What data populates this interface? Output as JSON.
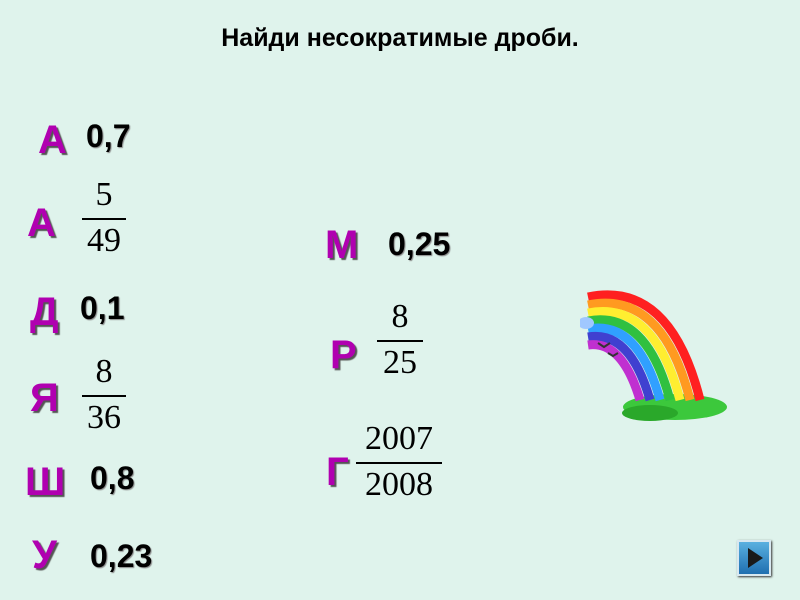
{
  "title": "Найди несократимые дроби.",
  "items": {
    "a1": {
      "letter": "А",
      "value": "0,7"
    },
    "a2": {
      "letter": "А",
      "numerator": "5",
      "denominator": "49"
    },
    "d": {
      "letter": "Д",
      "value": "0,1"
    },
    "ya": {
      "letter": "Я",
      "numerator": "8",
      "denominator": "36"
    },
    "sh": {
      "letter": "Ш",
      "value": "0,8"
    },
    "u": {
      "letter": "У",
      "value": "0,23"
    },
    "m": {
      "letter": "М",
      "value": "0,25"
    },
    "r": {
      "letter": "Р",
      "numerator": "8",
      "denominator": "25"
    },
    "g": {
      "letter": "Г",
      "numerator": "2007",
      "denominator": "2008"
    }
  },
  "colors": {
    "background": "#dff3ec",
    "letter": "#b000b0",
    "nav_button": "#2a80c0"
  },
  "nav": {
    "icon": "play-next-icon"
  }
}
